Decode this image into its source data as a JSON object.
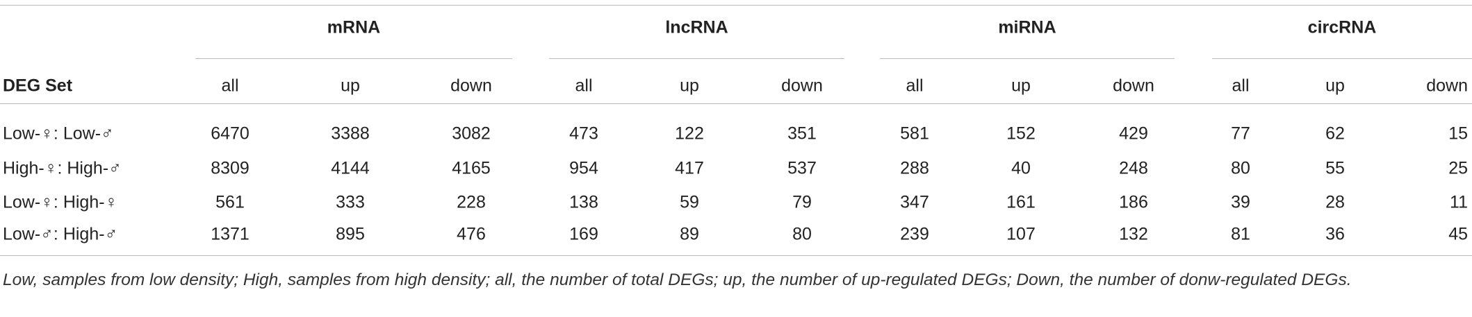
{
  "table": {
    "row_header": "DEG Set",
    "groups": [
      {
        "name": "mRNA",
        "columns": [
          "all",
          "up",
          "down"
        ]
      },
      {
        "name": "lncRNA",
        "columns": [
          "all",
          "up",
          "down"
        ]
      },
      {
        "name": "miRNA",
        "columns": [
          "all",
          "up",
          "down"
        ]
      },
      {
        "name": "circRNA",
        "columns": [
          "all",
          "up",
          "down"
        ]
      }
    ],
    "rows": [
      {
        "label": "Low-♀: Low-♂",
        "values": [
          6470,
          3388,
          3082,
          473,
          122,
          351,
          581,
          152,
          429,
          77,
          62,
          15
        ]
      },
      {
        "label": "High-♀: High-♂",
        "values": [
          8309,
          4144,
          4165,
          954,
          417,
          537,
          288,
          40,
          248,
          80,
          55,
          25
        ]
      },
      {
        "label": "Low-♀: High-♀",
        "values": [
          561,
          333,
          228,
          138,
          59,
          79,
          347,
          161,
          186,
          39,
          28,
          11
        ]
      },
      {
        "label": "Low-♂: High-♂",
        "values": [
          1371,
          895,
          476,
          169,
          89,
          80,
          239,
          107,
          132,
          81,
          36,
          45
        ]
      }
    ],
    "footnote": "Low, samples from low density; High, samples from high density; all, the number of total DEGs; up, the number of up-regulated DEGs; Down, the number of donw-regulated DEGs."
  }
}
